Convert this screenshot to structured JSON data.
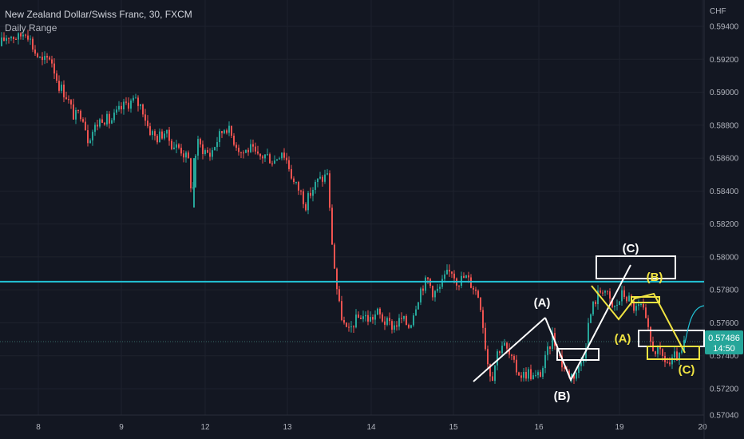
{
  "header": {
    "title": "New Zealand Dollar/Swiss Franc, 30, FXCM",
    "indicator": "Daily Range"
  },
  "colors": {
    "background": "#131722",
    "grid": "#1e222d",
    "up": "#26a69a",
    "down": "#ef5350",
    "level_line": "#22c3d6",
    "white_annotation": "#ffffff",
    "yellow_annotation": "#f0e442",
    "price_tag": "#26a69a"
  },
  "chart_data": {
    "type": "candlestick",
    "currency": "CHF",
    "ylim": [
      0.5704,
      0.5956
    ],
    "y_ticks": [
      "0.59400",
      "0.59200",
      "0.59000",
      "0.58800",
      "0.58600",
      "0.58400",
      "0.58200",
      "0.58000",
      "0.57800",
      "0.57600",
      "0.57400",
      "0.57200",
      "0.57040"
    ],
    "x_ticks": [
      "8",
      "9",
      "12",
      "13",
      "14",
      "15",
      "16",
      "19",
      "20"
    ],
    "grid": true,
    "last_price": "0.57486",
    "countdown": "14:50",
    "horizontal_level": 0.5785,
    "price_path": [
      [
        0,
        0.5928
      ],
      [
        12,
        0.5935
      ],
      [
        25,
        0.5933
      ],
      [
        35,
        0.5938
      ],
      [
        45,
        0.5925
      ],
      [
        55,
        0.5918
      ],
      [
        65,
        0.5922
      ],
      [
        75,
        0.5905
      ],
      [
        85,
        0.5898
      ],
      [
        95,
        0.5885
      ],
      [
        105,
        0.5888
      ],
      [
        112,
        0.5872
      ],
      [
        120,
        0.5878
      ],
      [
        130,
        0.5885
      ],
      [
        140,
        0.5882
      ],
      [
        150,
        0.5888
      ],
      [
        160,
        0.5893
      ],
      [
        170,
        0.5895
      ],
      [
        180,
        0.5891
      ],
      [
        188,
        0.5878
      ],
      [
        198,
        0.5872
      ],
      [
        208,
        0.5876
      ],
      [
        218,
        0.5868
      ],
      [
        228,
        0.5866
      ],
      [
        238,
        0.5858
      ],
      [
        243,
        0.5835
      ],
      [
        248,
        0.587
      ],
      [
        255,
        0.5866
      ],
      [
        265,
        0.5862
      ],
      [
        275,
        0.5872
      ],
      [
        285,
        0.588
      ],
      [
        295,
        0.5871
      ],
      [
        305,
        0.5863
      ],
      [
        315,
        0.5866
      ],
      [
        325,
        0.586
      ],
      [
        335,
        0.5862
      ],
      [
        345,
        0.5858
      ],
      [
        355,
        0.5865
      ],
      [
        362,
        0.5858
      ],
      [
        370,
        0.5845
      ],
      [
        378,
        0.584
      ],
      [
        385,
        0.5832
      ],
      [
        392,
        0.584
      ],
      [
        400,
        0.5846
      ],
      [
        408,
        0.5848
      ],
      [
        412,
        0.5852
      ],
      [
        416,
        0.582
      ],
      [
        420,
        0.5798
      ],
      [
        426,
        0.5772
      ],
      [
        432,
        0.576
      ],
      [
        438,
        0.5753
      ],
      [
        445,
        0.576
      ],
      [
        455,
        0.5765
      ],
      [
        465,
        0.5762
      ],
      [
        475,
        0.5766
      ],
      [
        485,
        0.576
      ],
      [
        495,
        0.5758
      ],
      [
        505,
        0.5762
      ],
      [
        515,
        0.5758
      ],
      [
        522,
        0.577
      ],
      [
        530,
        0.5782
      ],
      [
        538,
        0.5786
      ],
      [
        545,
        0.5778
      ],
      [
        552,
        0.578
      ],
      [
        560,
        0.5788
      ],
      [
        568,
        0.5792
      ],
      [
        575,
        0.5785
      ],
      [
        585,
        0.5788
      ],
      [
        595,
        0.5782
      ],
      [
        603,
        0.5775
      ],
      [
        608,
        0.5755
      ],
      [
        612,
        0.5738
      ],
      [
        618,
        0.5726
      ],
      [
        625,
        0.5742
      ],
      [
        632,
        0.5748
      ],
      [
        640,
        0.574
      ],
      [
        648,
        0.5732
      ],
      [
        656,
        0.5728
      ],
      [
        664,
        0.573
      ],
      [
        672,
        0.5726
      ],
      [
        680,
        0.573
      ],
      [
        688,
        0.5742
      ],
      [
        694,
        0.5752
      ],
      [
        700,
        0.5744
      ],
      [
        706,
        0.5735
      ],
      [
        712,
        0.573
      ],
      [
        720,
        0.5728
      ],
      [
        728,
        0.5733
      ],
      [
        735,
        0.5745
      ],
      [
        740,
        0.5762
      ],
      [
        746,
        0.5772
      ],
      [
        752,
        0.5778
      ],
      [
        758,
        0.5782
      ],
      [
        764,
        0.5775
      ],
      [
        770,
        0.5768
      ],
      [
        776,
        0.5772
      ],
      [
        782,
        0.5778
      ],
      [
        790,
        0.5774
      ],
      [
        798,
        0.5768
      ],
      [
        806,
        0.577
      ],
      [
        812,
        0.5758
      ],
      [
        818,
        0.5746
      ],
      [
        826,
        0.5742
      ],
      [
        834,
        0.5738
      ],
      [
        842,
        0.5734
      ],
      [
        848,
        0.574
      ],
      [
        854,
        0.5738
      ],
      [
        860,
        0.5749
      ]
    ],
    "annotations": {
      "white_labels": [
        {
          "text": "(A)",
          "t": 680,
          "price": 0.5768
        },
        {
          "text": "(B)",
          "t": 704,
          "price": 0.5721
        },
        {
          "text": "(C)",
          "t": 790,
          "price": 0.5806
        }
      ],
      "yellow_labels": [
        {
          "text": "(B)",
          "t": 820,
          "price": 0.5786
        },
        {
          "text": "(A)",
          "t": 780,
          "price": 0.5746
        },
        {
          "text": "(C)",
          "t": 860,
          "price": 0.5727
        }
      ]
    }
  }
}
